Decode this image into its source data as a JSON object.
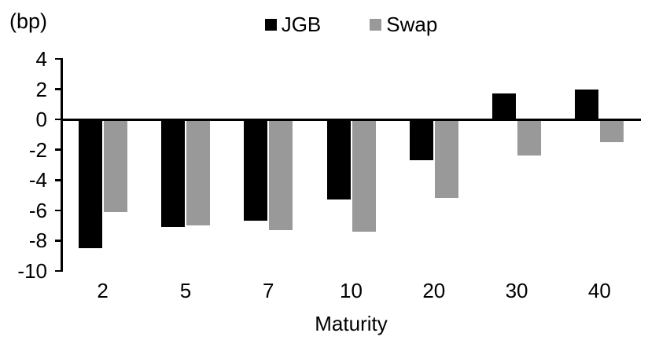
{
  "chart": {
    "unit_label": "(bp)"
  },
  "chart_data": {
    "type": "bar",
    "title": "",
    "xlabel": "Maturity",
    "ylabel": "(bp)",
    "categories": [
      "2",
      "5",
      "7",
      "10",
      "20",
      "30",
      "40"
    ],
    "series": [
      {
        "name": "JGB",
        "color": "#000000",
        "values": [
          -8.5,
          -7.1,
          -6.7,
          -5.3,
          -2.7,
          1.7,
          2.0
        ]
      },
      {
        "name": "Swap",
        "color": "#999999",
        "values": [
          -6.1,
          -7.0,
          -7.3,
          -7.4,
          -5.2,
          -2.4,
          -1.5
        ]
      }
    ],
    "ylim": [
      -10,
      4
    ],
    "yticks": [
      4,
      2,
      0,
      -2,
      -4,
      -6,
      -8,
      -10
    ],
    "grid": false,
    "legend_position": "top-center"
  }
}
